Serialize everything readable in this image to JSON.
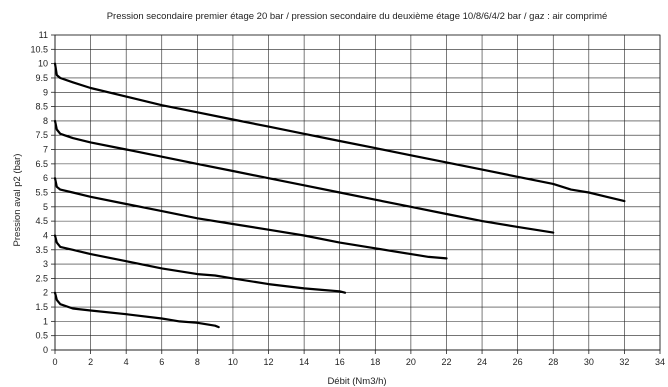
{
  "chart_data": {
    "type": "line",
    "title": "Pression secondaire premier étage 20 bar / pression secondaire du deuxième étage 10/8/6/4/2 bar / gaz : air comprimé",
    "xlabel": "Débit (Nm3/h)",
    "ylabel": "Pression aval p2 (bar)",
    "xlim": [
      0,
      34
    ],
    "ylim": [
      0,
      11
    ],
    "x_ticks": [
      "0",
      "2",
      "4",
      "6",
      "8",
      "10",
      "12",
      "14",
      "16",
      "18",
      "20",
      "22",
      "24",
      "26",
      "28",
      "30",
      "32",
      "34"
    ],
    "y_ticks": [
      "0",
      "0.5",
      "1",
      "1.5",
      "2",
      "2.5",
      "3",
      "3.5",
      "4",
      "4.5",
      "5",
      "5.5",
      "6",
      "6.5",
      "7",
      "7.5",
      "8",
      "8.5",
      "9",
      "9.5",
      "10",
      "10.5",
      "11"
    ],
    "grid": true,
    "line_color": "#000000",
    "series": [
      {
        "x": [
          0,
          0.1,
          0.3,
          1,
          2,
          4,
          6,
          8,
          10,
          12,
          14,
          16,
          18,
          20,
          22,
          24,
          26,
          28,
          29,
          30,
          31,
          32
        ],
        "y": [
          10,
          9.6,
          9.5,
          9.35,
          9.15,
          8.85,
          8.55,
          8.3,
          8.05,
          7.8,
          7.55,
          7.3,
          7.05,
          6.8,
          6.55,
          6.3,
          6.05,
          5.8,
          5.6,
          5.5,
          5.35,
          5.2
        ]
      },
      {
        "x": [
          0,
          0.1,
          0.3,
          1,
          2,
          4,
          6,
          8,
          10,
          12,
          14,
          16,
          18,
          20,
          22,
          24,
          26,
          28
        ],
        "y": [
          8,
          7.7,
          7.55,
          7.4,
          7.25,
          7.0,
          6.75,
          6.5,
          6.25,
          6.0,
          5.75,
          5.5,
          5.25,
          5.0,
          4.75,
          4.5,
          4.3,
          4.1
        ]
      },
      {
        "x": [
          0,
          0.1,
          0.3,
          1,
          2,
          4,
          6,
          8,
          10,
          12,
          14,
          16,
          18,
          20,
          21,
          22
        ],
        "y": [
          6,
          5.7,
          5.6,
          5.5,
          5.35,
          5.1,
          4.85,
          4.6,
          4.4,
          4.2,
          4.0,
          3.75,
          3.55,
          3.35,
          3.25,
          3.2
        ]
      },
      {
        "x": [
          0,
          0.1,
          0.3,
          1,
          2,
          4,
          6,
          8,
          9,
          10,
          12,
          14,
          15,
          16,
          16.3
        ],
        "y": [
          4,
          3.75,
          3.6,
          3.5,
          3.35,
          3.1,
          2.85,
          2.65,
          2.6,
          2.5,
          2.3,
          2.15,
          2.1,
          2.05,
          2.0
        ]
      },
      {
        "x": [
          0,
          0.1,
          0.3,
          1,
          2,
          4,
          6,
          7,
          8,
          9,
          9.2
        ],
        "y": [
          2,
          1.75,
          1.6,
          1.45,
          1.38,
          1.25,
          1.1,
          1.0,
          0.95,
          0.85,
          0.8
        ]
      }
    ]
  }
}
